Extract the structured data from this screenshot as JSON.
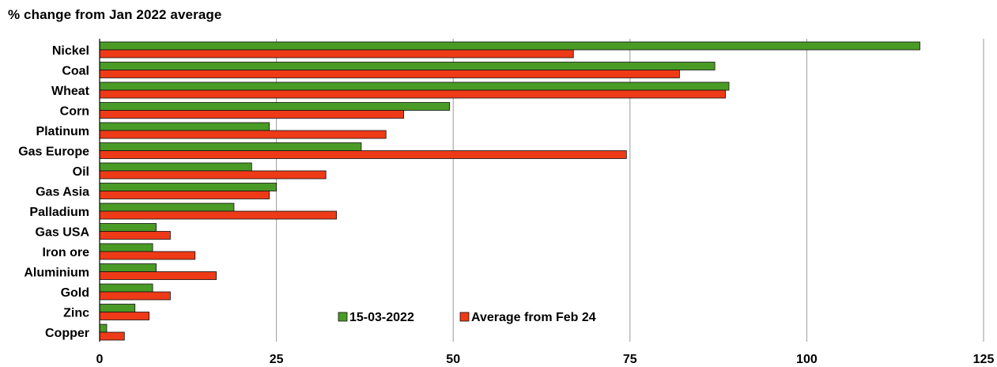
{
  "chart_data": {
    "type": "bar",
    "orientation": "horizontal",
    "title": "% change from Jan 2022 average",
    "categories": [
      "Nickel",
      "Coal",
      "Wheat",
      "Corn",
      "Platinum",
      "Gas Europe",
      "Oil",
      "Gas Asia",
      "Palladium",
      "Gas USA",
      "Iron ore",
      "Aluminium",
      "Gold",
      "Zinc",
      "Copper"
    ],
    "series": [
      {
        "name": "15-03-2022",
        "color": "#4a9a26",
        "values": [
          116,
          87,
          89,
          49.5,
          24,
          37,
          21.5,
          25,
          19,
          8,
          7.5,
          8,
          7.5,
          5,
          1
        ]
      },
      {
        "name": "Average from Feb 24",
        "color": "#ee3a17",
        "values": [
          67,
          82,
          88.5,
          43,
          40.5,
          74.5,
          32,
          24,
          33.5,
          10,
          13.5,
          16.5,
          10,
          7,
          3.5
        ]
      }
    ],
    "xlim": [
      0,
      125
    ],
    "xticks": [
      "0",
      "25",
      "50",
      "75",
      "100",
      "125"
    ],
    "grid": "vertical",
    "legend_position": "bottom-center"
  }
}
